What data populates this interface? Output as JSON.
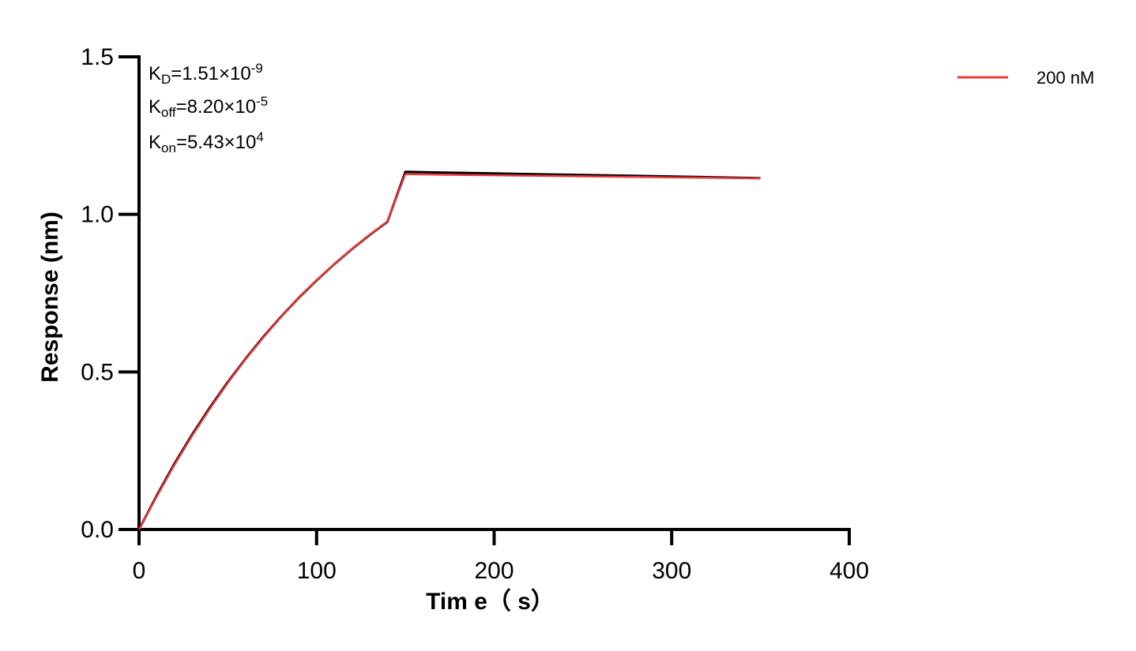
{
  "chart_data": {
    "type": "line",
    "xlabel": "Tim e（ s）",
    "ylabel": "Response (nm)",
    "xlim": [
      0,
      400
    ],
    "ylim": [
      0,
      1.5
    ],
    "x_ticks": [
      "0",
      "100",
      "200",
      "300",
      "400"
    ],
    "y_ticks": [
      "0.0",
      "0.5",
      "1.0",
      "1.5"
    ],
    "grid": false,
    "legend_position": "top-right",
    "annotations": {
      "kd": {
        "label": "K",
        "sub": "D",
        "value": "=1.51×10",
        "exp": "-9"
      },
      "koff": {
        "label": "K",
        "sub": "off",
        "value": "=8.20×10",
        "exp": "-5"
      },
      "kon": {
        "label": "K",
        "sub": "on",
        "value": "=5.43×10",
        "exp": "4"
      }
    },
    "association_end": 150,
    "series": [
      {
        "name": "200 nM",
        "color": "#e8393b",
        "role": "measured",
        "x": [
          0,
          10,
          20,
          30,
          40,
          50,
          60,
          70,
          80,
          90,
          100,
          110,
          120,
          130,
          140,
          150,
          170,
          200,
          230,
          260,
          290,
          320,
          350
        ],
        "y": [
          0.0,
          0.105,
          0.205,
          0.298,
          0.384,
          0.465,
          0.54,
          0.609,
          0.674,
          0.734,
          0.79,
          0.842,
          0.89,
          0.936,
          0.978,
          1.128,
          1.126,
          1.124,
          1.122,
          1.12,
          1.118,
          1.116,
          1.114
        ]
      },
      {
        "name": "",
        "color": "#000000",
        "role": "fit",
        "x": [
          0,
          10,
          20,
          30,
          40,
          50,
          60,
          70,
          80,
          90,
          100,
          110,
          120,
          130,
          140,
          150,
          170,
          200,
          230,
          260,
          290,
          320,
          350
        ],
        "y": [
          0.0,
          0.108,
          0.209,
          0.302,
          0.388,
          0.468,
          0.542,
          0.611,
          0.675,
          0.735,
          0.79,
          0.842,
          0.89,
          0.935,
          0.977,
          1.135,
          1.133,
          1.13,
          1.127,
          1.124,
          1.121,
          1.118,
          1.115
        ]
      }
    ]
  }
}
